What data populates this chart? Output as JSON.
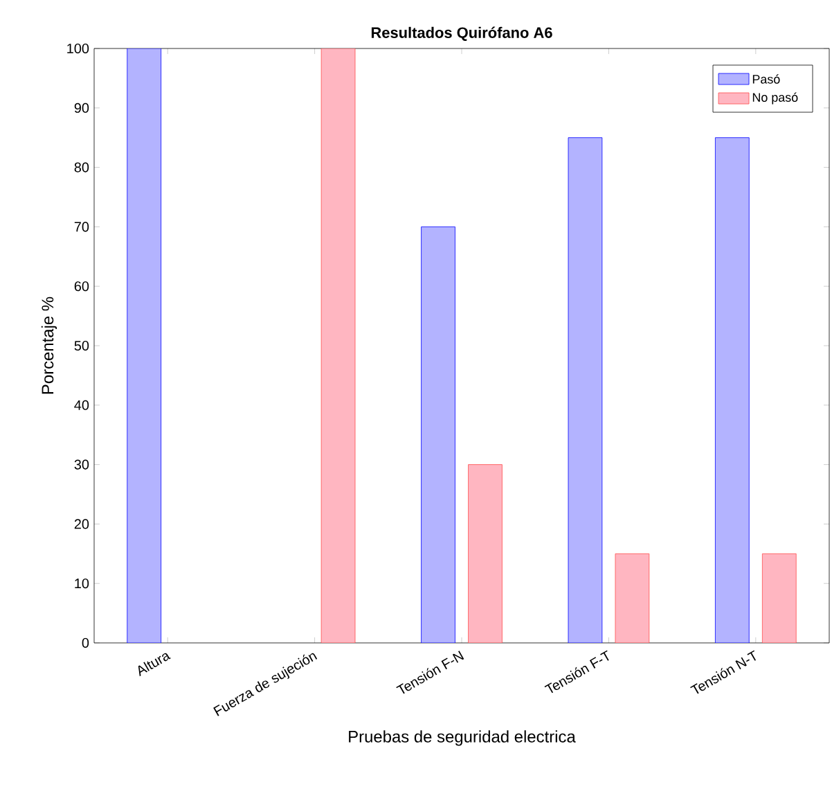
{
  "chart_data": {
    "type": "bar",
    "title": "Resultados Quirófano A6",
    "xlabel": "Pruebas de seguridad electrica",
    "ylabel": "Porcentaje %",
    "categories": [
      "Altura",
      "Fuerza de sujeción",
      "Tensión F-N",
      "Tensión F-T",
      "Tensión N-T"
    ],
    "series": [
      {
        "name": "Pasó",
        "color": "#b3b3ff",
        "values": [
          100,
          0,
          70,
          85,
          85
        ]
      },
      {
        "name": "No pasó",
        "color": "#ffb6c1",
        "values": [
          0,
          100,
          30,
          15,
          15
        ]
      }
    ],
    "ylim": [
      0,
      100
    ],
    "yticks": [
      0,
      10,
      20,
      30,
      40,
      50,
      60,
      70,
      80,
      90,
      100
    ],
    "grid": false,
    "legend": "top right"
  }
}
